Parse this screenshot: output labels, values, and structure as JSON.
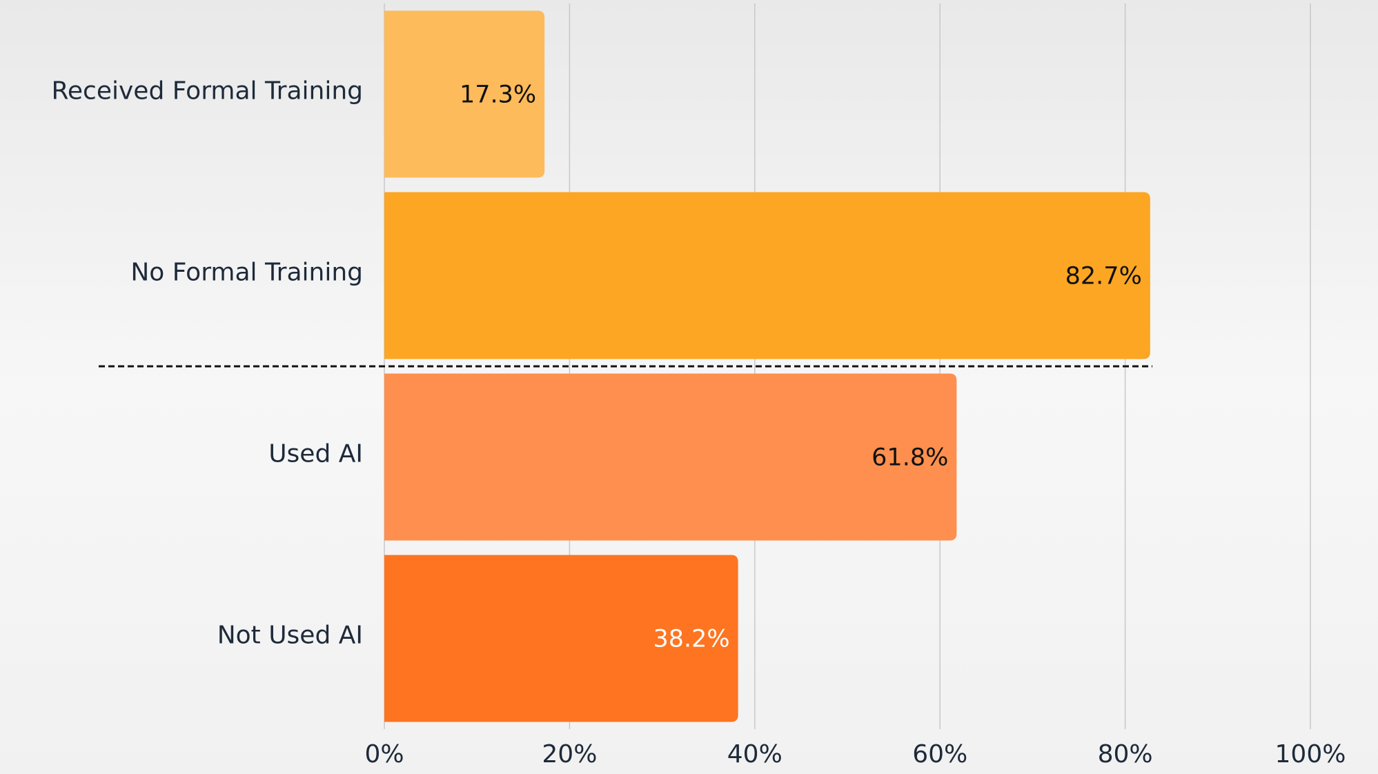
{
  "chart_data": {
    "type": "barh",
    "categories": [
      "Received Formal Training",
      "No Formal Training",
      "Used AI",
      "Not Used AI"
    ],
    "values": [
      17.3,
      82.7,
      61.8,
      38.2
    ],
    "value_labels": [
      "17.3%",
      "82.7%",
      "61.8%",
      "38.2%"
    ],
    "colors": [
      "#fdbb5b",
      "#fca623",
      "#fe8f4e",
      "#fe7420"
    ],
    "label_colors": [
      "#111111",
      "#111111",
      "#111111",
      "#ffffff"
    ],
    "xlim": [
      0,
      100
    ],
    "xticks": [
      {
        "value": 0,
        "label": "0%"
      },
      {
        "value": 20,
        "label": "20%"
      },
      {
        "value": 40,
        "label": "40%"
      },
      {
        "value": 60,
        "label": "60%"
      },
      {
        "value": 80,
        "label": "80%"
      },
      {
        "value": 100,
        "label": "100%"
      }
    ],
    "grid": true
  }
}
